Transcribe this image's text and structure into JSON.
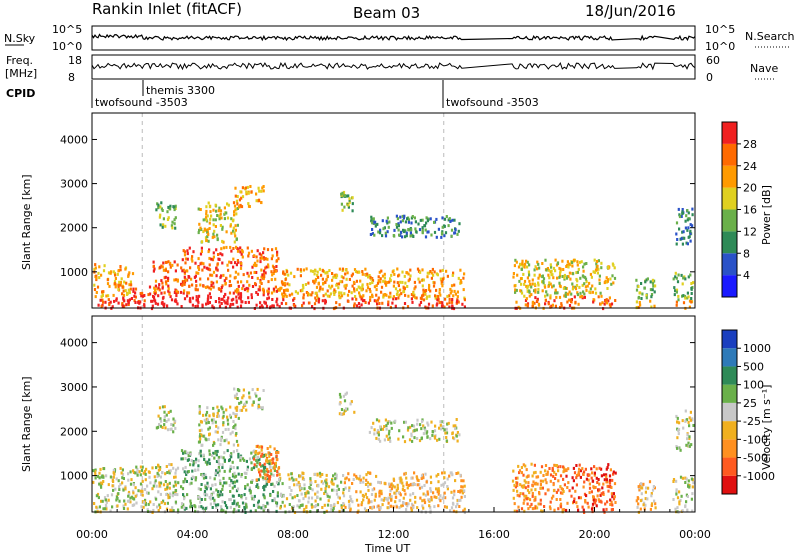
{
  "header": {
    "station": "Rankin Inlet (fitACF)",
    "beam": "Beam 03",
    "date": "18/Jun/2016"
  },
  "aux_panels": {
    "nsky_label": "N.Sky",
    "nsky_ticks": [
      "10^5",
      "10^0"
    ],
    "nsearch_label": "N.Search",
    "nsearch_ticks": [
      "10^5",
      "10^0"
    ],
    "freq_label_1": "Freq.",
    "freq_label_2": "[MHz]",
    "freq_ticks": [
      "18",
      "8"
    ],
    "nave_label": "Nave",
    "nave_ticks": [
      "60",
      "0"
    ],
    "cpid_label": "CPID",
    "cpid_entries": [
      {
        "name": "twofsound -3503",
        "start_hour": 0
      },
      {
        "name": "themis 3300",
        "start_hour": 2
      },
      {
        "name": "twofsound -3503",
        "start_hour": 14
      }
    ]
  },
  "chart_data": [
    {
      "type": "heatmap",
      "quantity": "power",
      "ylabel": "Slant Range [km]",
      "xlabel": "",
      "ylim": [
        180,
        4600
      ],
      "xlim": [
        0,
        24
      ],
      "yticks": [
        "1000",
        "2000",
        "3000",
        "4000"
      ],
      "colorbar_label": "Power [dB]",
      "colorbar_ticks": [
        "4",
        "8",
        "12",
        "16",
        "20",
        "24",
        "28"
      ],
      "colorbar_colors": [
        "#1a1aff",
        "#2a52c8",
        "#2e8a57",
        "#6ab04a",
        "#e0d020",
        "#ff9a00",
        "#ff6a00",
        "#f02020"
      ],
      "scatter_regions": [
        {
          "t": [
            0.0,
            1.6
          ],
          "r": [
            200,
            1200
          ],
          "level": 5
        },
        {
          "t": [
            1.6,
            2.4
          ],
          "r": [
            200,
            700
          ],
          "level": 7
        },
        {
          "t": [
            2.4,
            3.4
          ],
          "r": [
            200,
            1300
          ],
          "level": 6
        },
        {
          "t": [
            3.5,
            7.4
          ],
          "r": [
            200,
            1600
          ],
          "level": 6
        },
        {
          "t": [
            7.4,
            10.0
          ],
          "r": [
            200,
            1100
          ],
          "level": 5
        },
        {
          "t": [
            10.0,
            14.8
          ],
          "r": [
            200,
            1100
          ],
          "level": 5
        },
        {
          "t": [
            16.7,
            20.8
          ],
          "r": [
            200,
            1300
          ],
          "level": 4
        },
        {
          "t": [
            21.6,
            22.4
          ],
          "r": [
            200,
            900
          ],
          "level": 3
        },
        {
          "t": [
            23.1,
            23.9
          ],
          "r": [
            200,
            1000
          ],
          "level": 3
        },
        {
          "t": [
            2.5,
            3.3
          ],
          "r": [
            2000,
            2600
          ],
          "level": 3
        },
        {
          "t": [
            4.2,
            5.8
          ],
          "r": [
            1700,
            2600
          ],
          "level": 4
        },
        {
          "t": [
            5.6,
            6.8
          ],
          "r": [
            2500,
            3000
          ],
          "level": 5
        },
        {
          "t": [
            9.8,
            10.4
          ],
          "r": [
            2400,
            2900
          ],
          "level": 3
        },
        {
          "t": [
            11.0,
            14.6
          ],
          "r": [
            1800,
            2300
          ],
          "level": 2
        },
        {
          "t": [
            23.2,
            23.9
          ],
          "r": [
            1600,
            2500
          ],
          "level": 2
        }
      ]
    },
    {
      "type": "heatmap",
      "quantity": "velocity",
      "ylabel": "Slant Range [km]",
      "xlabel": "Time UT",
      "ylim": [
        180,
        4600
      ],
      "xlim": [
        0,
        24
      ],
      "yticks": [
        "1000",
        "2000",
        "3000",
        "4000"
      ],
      "xticks": [
        "00:00",
        "04:00",
        "08:00",
        "12:00",
        "16:00",
        "20:00",
        "00:00"
      ],
      "colorbar_label": "Velocity [m s⁻¹]",
      "colorbar_ticks": [
        "1000",
        "500",
        "100",
        "25",
        "-25",
        "-100",
        "-500",
        "-1000"
      ],
      "colorbar_colors": [
        "#1a3fbf",
        "#2e7ab8",
        "#2e8a57",
        "#6ab04a",
        "#c8c8c8",
        "#f0b020",
        "#ff9020",
        "#ff5a20",
        "#e01010"
      ],
      "scatter_regions": [
        {
          "t": [
            0.0,
            1.6
          ],
          "r": [
            200,
            1200
          ],
          "level": 4
        },
        {
          "t": [
            1.6,
            3.4
          ],
          "r": [
            200,
            1300
          ],
          "level": 4
        },
        {
          "t": [
            3.5,
            7.4
          ],
          "r": [
            200,
            1600
          ],
          "level": 3
        },
        {
          "t": [
            6.4,
            7.4
          ],
          "r": [
            900,
            1700
          ],
          "level": 6
        },
        {
          "t": [
            7.4,
            10.0
          ],
          "r": [
            200,
            1100
          ],
          "level": 4
        },
        {
          "t": [
            10.0,
            14.8
          ],
          "r": [
            200,
            1100
          ],
          "level": 5
        },
        {
          "t": [
            16.7,
            18.8
          ],
          "r": [
            200,
            1300
          ],
          "level": 6
        },
        {
          "t": [
            18.8,
            20.8
          ],
          "r": [
            200,
            1300
          ],
          "level": 7
        },
        {
          "t": [
            21.6,
            22.4
          ],
          "r": [
            200,
            900
          ],
          "level": 5
        },
        {
          "t": [
            23.1,
            23.9
          ],
          "r": [
            200,
            1000
          ],
          "level": 4
        },
        {
          "t": [
            2.5,
            3.3
          ],
          "r": [
            2000,
            2600
          ],
          "level": 4
        },
        {
          "t": [
            4.2,
            5.8
          ],
          "r": [
            1700,
            2600
          ],
          "level": 4
        },
        {
          "t": [
            5.6,
            6.8
          ],
          "r": [
            2500,
            3000
          ],
          "level": 4
        },
        {
          "t": [
            9.8,
            10.4
          ],
          "r": [
            2400,
            2900
          ],
          "level": 4
        },
        {
          "t": [
            11.0,
            14.6
          ],
          "r": [
            1800,
            2300
          ],
          "level": 4
        },
        {
          "t": [
            23.2,
            23.9
          ],
          "r": [
            1600,
            2500
          ],
          "level": 4
        }
      ]
    }
  ]
}
